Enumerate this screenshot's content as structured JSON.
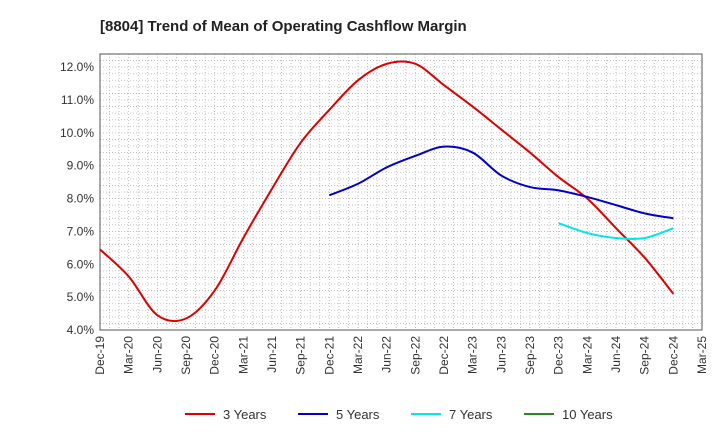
{
  "chart_data": {
    "type": "line",
    "title": "[8804]  Trend of Mean of Operating Cashflow Margin",
    "xlabel": "",
    "ylabel": "",
    "x": [
      "Dec-19",
      "Mar-20",
      "Jun-20",
      "Sep-20",
      "Dec-20",
      "Mar-21",
      "Jun-21",
      "Sep-21",
      "Dec-21",
      "Mar-22",
      "Jun-22",
      "Sep-22",
      "Dec-22",
      "Mar-23",
      "Jun-23",
      "Sep-23",
      "Dec-23",
      "Mar-24",
      "Jun-24",
      "Sep-24",
      "Dec-24",
      "Mar-25"
    ],
    "ylim": [
      4.0,
      12.4
    ],
    "yticks": [
      "4.0%",
      "5.0%",
      "6.0%",
      "7.0%",
      "8.0%",
      "9.0%",
      "10.0%",
      "11.0%",
      "12.0%"
    ],
    "grid": true,
    "legend_position": "bottom",
    "series": [
      {
        "name": "3 Years",
        "color": "#dd0000",
        "values": [
          6.45,
          5.63,
          4.45,
          4.35,
          5.2,
          6.8,
          8.3,
          9.7,
          10.7,
          11.6,
          12.1,
          12.1,
          11.45,
          10.8,
          10.1,
          9.4,
          8.65,
          8.0,
          7.1,
          6.2,
          5.1,
          null
        ]
      },
      {
        "name": "5 Years",
        "color": "#0000cc",
        "values": [
          null,
          null,
          null,
          null,
          null,
          null,
          null,
          null,
          8.1,
          8.45,
          8.95,
          9.3,
          9.58,
          9.4,
          8.7,
          8.35,
          8.25,
          8.05,
          7.8,
          7.55,
          7.4,
          null
        ]
      },
      {
        "name": "7 Years",
        "color": "#00e5ee",
        "values": [
          null,
          null,
          null,
          null,
          null,
          null,
          null,
          null,
          null,
          null,
          null,
          null,
          null,
          null,
          null,
          null,
          7.25,
          6.95,
          6.8,
          6.8,
          7.1,
          null
        ]
      },
      {
        "name": "10 Years",
        "color": "#228b22",
        "values": [
          null,
          null,
          null,
          null,
          null,
          null,
          null,
          null,
          null,
          null,
          null,
          null,
          null,
          null,
          null,
          null,
          null,
          null,
          null,
          null,
          null,
          null
        ]
      }
    ]
  }
}
